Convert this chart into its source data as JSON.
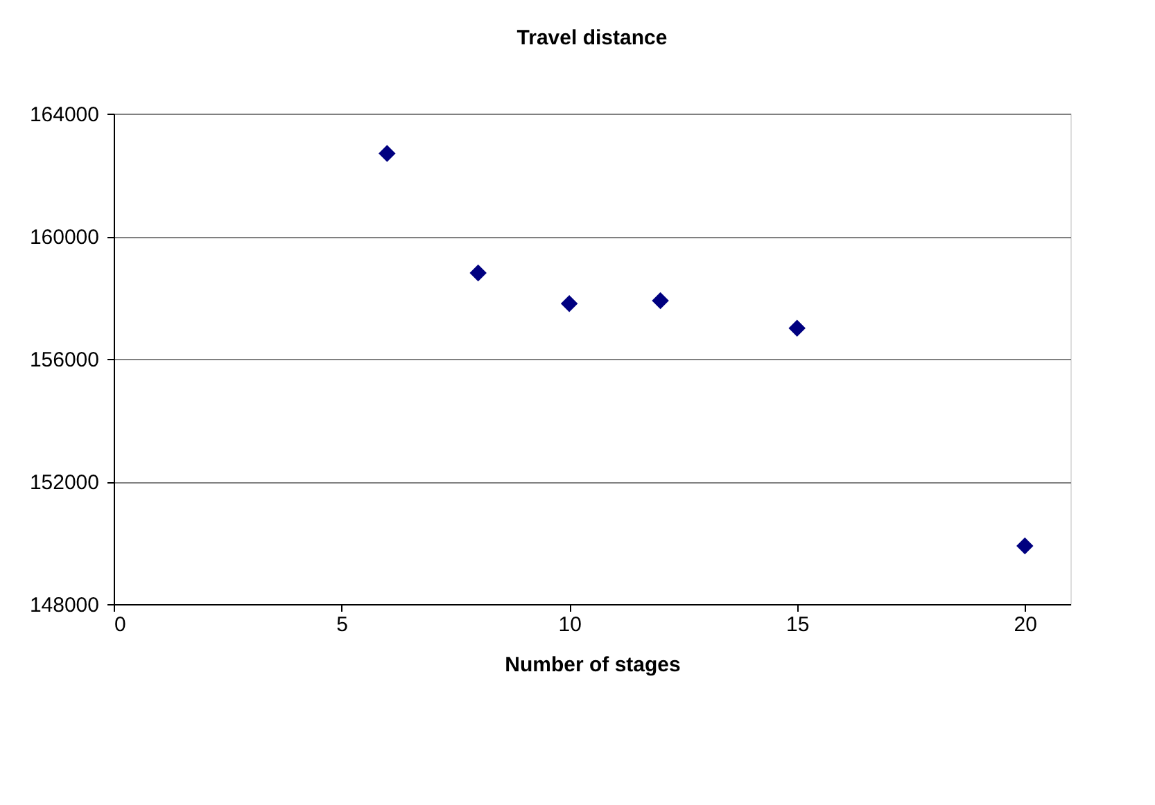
{
  "chart_data": {
    "type": "scatter",
    "title": "Travel distance",
    "xlabel": "Number of stages",
    "x": [
      6,
      8,
      10,
      12,
      15,
      20
    ],
    "series": [
      {
        "color": "#000080",
        "values": [
          162700,
          158800,
          157800,
          157900,
          157000,
          149900
        ]
      }
    ],
    "xlim": [
      0,
      21
    ],
    "xticks": [
      0,
      5,
      10,
      15,
      20
    ],
    "ylim": [
      148000,
      164000
    ],
    "yticks": [
      148000,
      152000,
      156000,
      160000,
      164000
    ],
    "grid": "y",
    "marker": "diamond",
    "legend": false
  }
}
